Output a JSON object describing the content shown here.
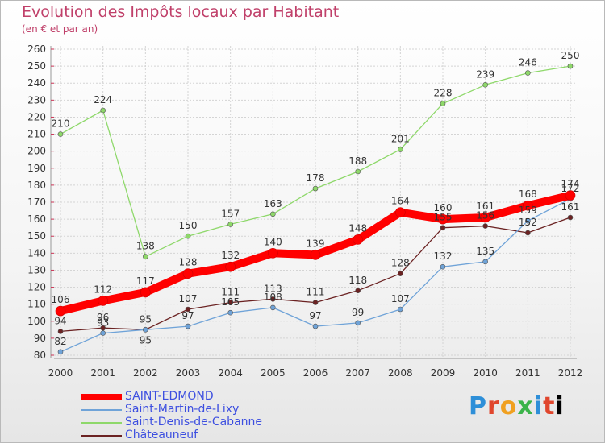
{
  "chart_data": {
    "type": "line",
    "title": "Evolution des Impôts locaux par Habitant",
    "subtitle": "(en € et par an)",
    "x": [
      "2000",
      "2001",
      "2002",
      "2003",
      "2004",
      "2005",
      "2006",
      "2007",
      "2008",
      "2009",
      "2010",
      "2011",
      "2012"
    ],
    "ylim": [
      80,
      260
    ],
    "ytick_step": 10,
    "grid": true,
    "legend_position": "bottom-left",
    "series": [
      {
        "name": "SAINT-EDMOND",
        "color": "#ff0000",
        "values": [
          106,
          112,
          117,
          128,
          132,
          140,
          139,
          148,
          164,
          160,
          161,
          168,
          174
        ]
      },
      {
        "name": "Saint-Martin-de-Lixy",
        "color": "#6fa3d8",
        "values": [
          82,
          93,
          95,
          97,
          105,
          108,
          97,
          99,
          107,
          132,
          135,
          159,
          172
        ]
      },
      {
        "name": "Saint-Denis-de-Cabanne",
        "color": "#8ed86a",
        "values": [
          210,
          224,
          138,
          150,
          157,
          163,
          178,
          188,
          201,
          228,
          239,
          246,
          250
        ]
      },
      {
        "name": "Châteauneuf",
        "color": "#6b2222",
        "values": [
          94,
          96,
          95,
          107,
          111,
          113,
          111,
          118,
          128,
          155,
          156,
          152,
          161
        ]
      }
    ]
  },
  "brand": {
    "letters": [
      "P",
      "r",
      "o",
      "x",
      "i",
      "t",
      "i"
    ]
  }
}
